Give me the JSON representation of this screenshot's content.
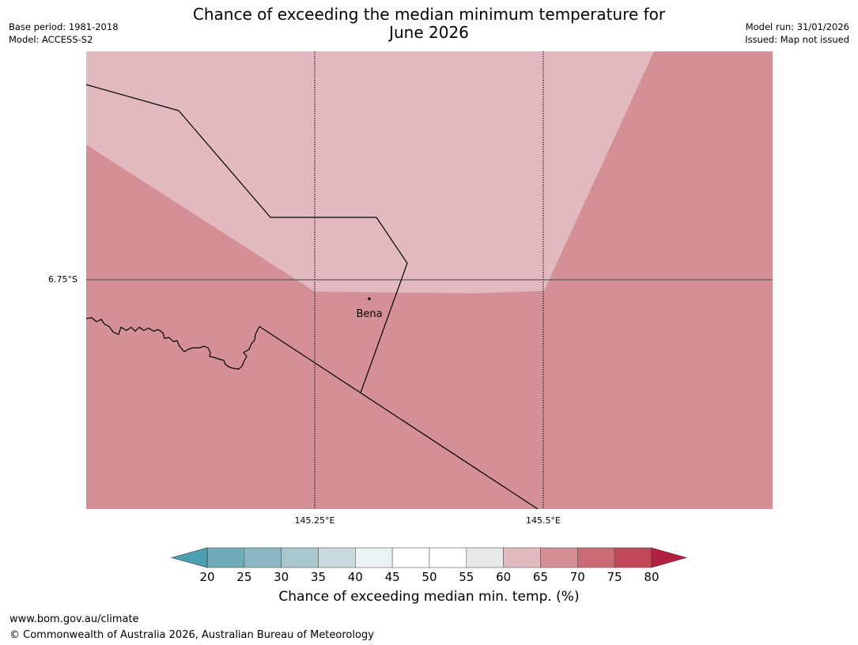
{
  "header": {
    "title_line1": "Chance of exceeding the median minimum temperature for",
    "title_line2": "June 2026",
    "base_period": "Base period: 1981-2018",
    "model": "Model: ACCESS-S2",
    "model_run": "Model run: 31/01/2026",
    "issued": "Issued: Map not issued"
  },
  "map": {
    "place_name": "Bena",
    "lat_label": "6.75°S",
    "lon_labels": [
      "145.25°E",
      "145.5°E"
    ],
    "colors": {
      "high": "#d58f96",
      "medium": "#e1b9bf",
      "line": "#000000",
      "border": "#555555"
    }
  },
  "colorbar": {
    "label": "Chance of exceeding median min. temp. (%)",
    "ticks": [
      "20",
      "25",
      "30",
      "35",
      "40",
      "45",
      "50",
      "55",
      "60",
      "65",
      "70",
      "75",
      "80"
    ],
    "colors": [
      "#6dabb9",
      "#8bb7c3",
      "#a9c7cd",
      "#c9dadd",
      "#eaf2f3",
      "#ffffff",
      "#ffffff",
      "#e8e8e8",
      "#e1b9bf",
      "#d58f96",
      "#cb6a74",
      "#c04859"
    ],
    "under_color": "#4b9fb0",
    "over_color": "#b3203f"
  },
  "footer": {
    "url": "www.bom.gov.au/climate",
    "copyright": "© Commonwealth of Australia 2026, Australian Bureau of Meteorology"
  }
}
